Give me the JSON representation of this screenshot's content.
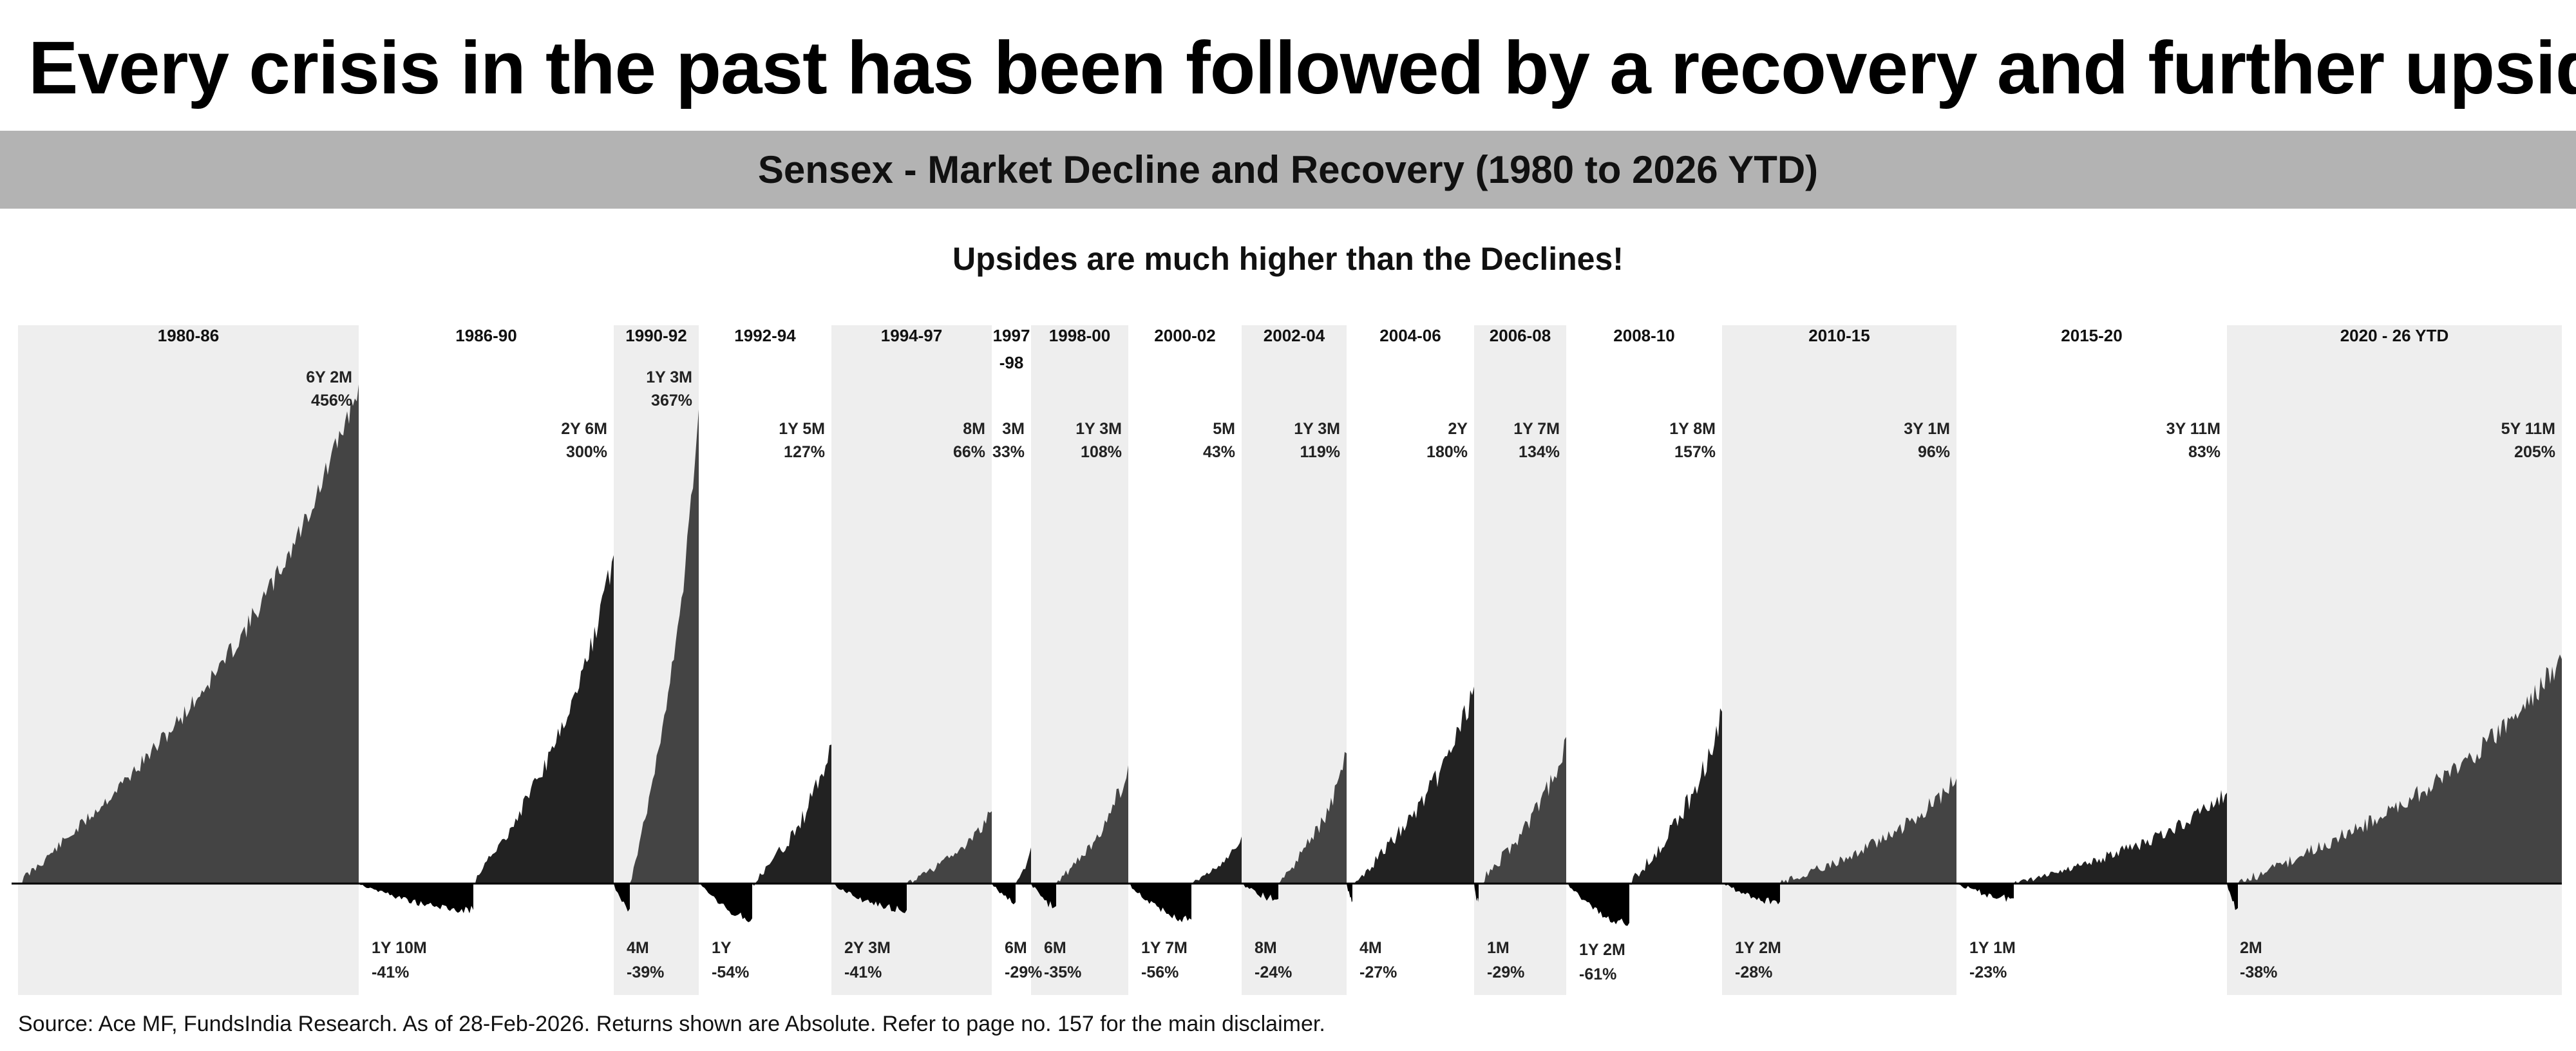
{
  "headline": "Every crisis in the past has been followed by a recovery and  further upside",
  "chart_title": "Sensex - Market Decline and Recovery (1980 to 2026 YTD)",
  "tagline": "Upsides are much higher than the Declines!",
  "source_note": "Source: Ace MF, FundsIndia Research. As of 28-Feb-2026. Returns shown are Absolute. Refer to page no. 157 for the main disclaimer.",
  "colors": {
    "background": "#ffffff",
    "band": "#b3b3b3",
    "shade": "#eeeeee",
    "rise_dark": "#222222",
    "rise_mid": "#444444",
    "decline": "#000000"
  },
  "chart_data": {
    "type": "area",
    "title": "Sensex - Market Decline and Recovery (1980 to 2026 YTD)",
    "baseline": 0,
    "periods": [
      {
        "label": "1980-86",
        "shaded": true,
        "decline": null,
        "rally": {
          "duration": "6Y 2M",
          "return_pct": 456,
          "label": "456%"
        }
      },
      {
        "label": "1986-90",
        "shaded": false,
        "decline": {
          "duration": "1Y 10M",
          "return_pct": -41,
          "label": "-41%"
        },
        "rally": {
          "duration": "2Y 6M",
          "return_pct": 300,
          "label": "300%"
        }
      },
      {
        "label": "1990-92",
        "shaded": true,
        "decline": {
          "duration": "4M",
          "return_pct": -39,
          "label": "-39%"
        },
        "rally": {
          "duration": "1Y 3M",
          "return_pct": 367,
          "label": "367%"
        }
      },
      {
        "label": "1992-94",
        "shaded": false,
        "decline": {
          "duration": "1Y",
          "return_pct": -54,
          "label": "-54%"
        },
        "rally": {
          "duration": "1Y 5M",
          "return_pct": 127,
          "label": "127%"
        }
      },
      {
        "label": "1994-97",
        "shaded": true,
        "decline": {
          "duration": "2Y 3M",
          "return_pct": -41,
          "label": "-41%"
        },
        "rally": {
          "duration": "8M",
          "return_pct": 66,
          "label": "66%"
        }
      },
      {
        "label": "1997",
        "label2": "-98",
        "shaded": false,
        "decline": {
          "duration": "6M",
          "return_pct": -29,
          "label": "-29%"
        },
        "rally": {
          "duration": "3M",
          "return_pct": 33,
          "label": "33%"
        }
      },
      {
        "label": "1998-00",
        "shaded": true,
        "decline": {
          "duration": "6M",
          "return_pct": -35,
          "label": "-35%"
        },
        "rally": {
          "duration": "1Y 3M",
          "return_pct": 108,
          "label": "108%"
        }
      },
      {
        "label": "2000-02",
        "shaded": false,
        "decline": {
          "duration": "1Y 7M",
          "return_pct": -56,
          "label": "-56%"
        },
        "rally": {
          "duration": "5M",
          "return_pct": 43,
          "label": "43%"
        }
      },
      {
        "label": "2002-04",
        "shaded": true,
        "decline": {
          "duration": "8M",
          "return_pct": -24,
          "label": "-24%"
        },
        "rally": {
          "duration": "1Y 3M",
          "return_pct": 119,
          "label": "119%"
        }
      },
      {
        "label": "2004-06",
        "shaded": false,
        "decline": {
          "duration": "4M",
          "return_pct": -27,
          "label": "-27%"
        },
        "rally": {
          "duration": "2Y",
          "return_pct": 180,
          "label": "180%"
        }
      },
      {
        "label": "2006-08",
        "shaded": true,
        "decline": {
          "duration": "1M",
          "return_pct": -29,
          "label": "-29%"
        },
        "rally": {
          "duration": "1Y 7M",
          "return_pct": 134,
          "label": "134%"
        }
      },
      {
        "label": "2008-10",
        "shaded": false,
        "decline": {
          "duration": "1Y 2M",
          "return_pct": -61,
          "label": "-61%"
        },
        "rally": {
          "duration": "1Y 8M",
          "return_pct": 157,
          "label": "157%"
        }
      },
      {
        "label": "2010-15",
        "shaded": true,
        "decline": {
          "duration": "1Y 2M",
          "return_pct": -28,
          "label": "-28%"
        },
        "rally": {
          "duration": "3Y 1M",
          "return_pct": 96,
          "label": "96%"
        }
      },
      {
        "label": "2015-20",
        "shaded": false,
        "decline": {
          "duration": "1Y 1M",
          "return_pct": -23,
          "label": "-23%"
        },
        "rally": {
          "duration": "3Y 11M",
          "return_pct": 83,
          "label": "83%"
        }
      },
      {
        "label": "2020 - 26 YTD",
        "shaded": true,
        "decline": {
          "duration": "2M",
          "return_pct": -38,
          "label": "-38%"
        },
        "rally": {
          "duration": "5Y 11M",
          "return_pct": 205,
          "label": "205%"
        }
      }
    ]
  }
}
